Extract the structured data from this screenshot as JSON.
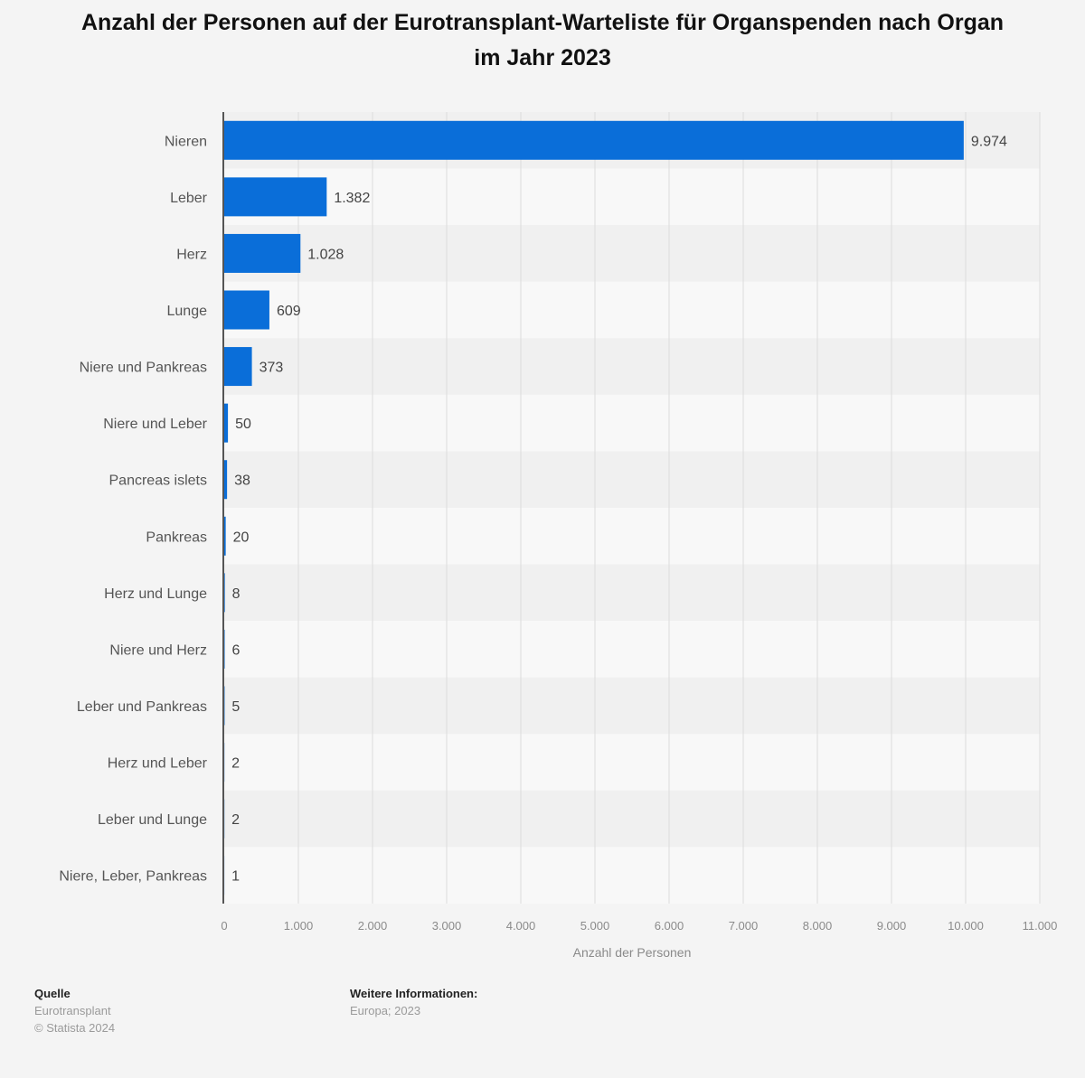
{
  "chart_data": {
    "type": "bar",
    "orientation": "horizontal",
    "title": "Anzahl der Personen auf der Eurotransplant-Warteliste für Organspenden nach Organ im Jahr 2023",
    "categories": [
      "Nieren",
      "Leber",
      "Herz",
      "Lunge",
      "Niere und Pankreas",
      "Niere und Leber",
      "Pancreas islets",
      "Pankreas",
      "Herz und Lunge",
      "Niere und Herz",
      "Leber und Pankreas",
      "Herz und Leber",
      "Leber und Lunge",
      "Niere, Leber, Pankreas"
    ],
    "values": [
      9974,
      1382,
      1028,
      609,
      373,
      50,
      38,
      20,
      8,
      6,
      5,
      2,
      2,
      1
    ],
    "value_labels": [
      "9.974",
      "1.382",
      "1.028",
      "609",
      "373",
      "50",
      "38",
      "20",
      "8",
      "6",
      "5",
      "2",
      "2",
      "1"
    ],
    "xlabel": "Anzahl der Personen",
    "ylabel": "",
    "xlim": [
      0,
      11000
    ],
    "xticks": [
      0,
      1000,
      2000,
      3000,
      4000,
      5000,
      6000,
      7000,
      8000,
      9000,
      10000,
      11000
    ],
    "xtick_labels": [
      "0",
      "1.000",
      "2.000",
      "3.000",
      "4.000",
      "5.000",
      "6.000",
      "7.000",
      "8.000",
      "9.000",
      "10.000",
      "11.000"
    ],
    "grid": true,
    "bar_color": "#0a6ed9"
  },
  "footer": {
    "source_heading": "Quelle",
    "source_name": "Eurotransplant",
    "copyright": "© Statista 2024",
    "info_heading": "Weitere Informationen:",
    "info_text": "Europa; 2023"
  }
}
